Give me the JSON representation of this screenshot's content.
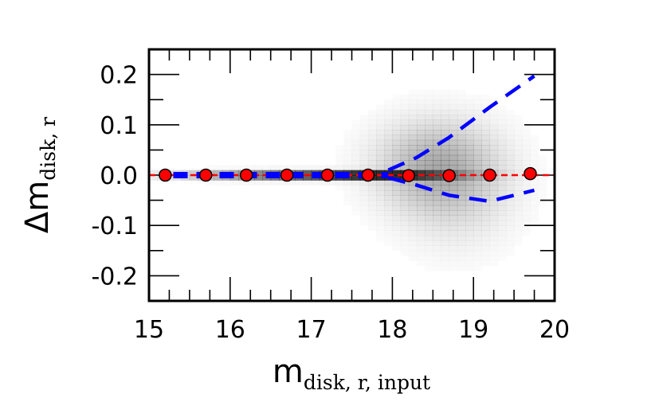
{
  "chart_data": {
    "type": "scatter",
    "xlabel": {
      "main": "m",
      "sub": "disk, r, input"
    },
    "ylabel": {
      "main": "Δm",
      "sub": "disk, r"
    },
    "xlim": [
      15,
      20
    ],
    "ylim": [
      -0.25,
      0.25
    ],
    "x_ticks": [
      15,
      16,
      17,
      18,
      19,
      20
    ],
    "x_tick_labels": [
      "15",
      "16",
      "17",
      "18",
      "19",
      "20"
    ],
    "y_ticks": [
      0.2,
      0.1,
      0.0,
      -0.1,
      -0.2
    ],
    "y_tick_labels": [
      "0.2",
      "0.1",
      "0.0",
      "-0.1",
      "-0.2"
    ],
    "grid": false,
    "colors": {
      "points": "#ff0000",
      "median_line": "#0000ff",
      "zero_line": "#ff0000",
      "density": "#000000"
    },
    "series": [
      {
        "style": "red-circles",
        "x": [
          15.2,
          15.7,
          16.2,
          16.7,
          17.2,
          17.7,
          18.2,
          18.7,
          19.2,
          19.7
        ],
        "y": [
          0.0,
          0.0,
          0.0,
          0.0,
          0.0,
          0.0,
          -0.001,
          -0.001,
          0.0,
          0.003
        ]
      },
      {
        "style": "blue-dashed-median",
        "x": [
          15.3,
          15.7,
          16.2,
          16.7,
          17.2,
          17.7,
          17.95
        ],
        "y": [
          0.0,
          0.0,
          0.0,
          0.0,
          0.0,
          0.0,
          0.0
        ]
      },
      {
        "style": "blue-dashed-upper",
        "x": [
          17.95,
          18.3,
          18.7,
          19.2,
          19.75
        ],
        "y": [
          0.01,
          0.035,
          0.075,
          0.135,
          0.197
        ]
      },
      {
        "style": "blue-dashed-lower",
        "x": [
          17.95,
          18.3,
          18.7,
          19.2,
          19.75
        ],
        "y": [
          -0.005,
          -0.02,
          -0.04,
          -0.052,
          -0.03
        ]
      },
      {
        "style": "red-dashed-zero",
        "x": [
          15.0,
          20.0
        ],
        "y": [
          0.0,
          0.0
        ]
      }
    ],
    "density": {
      "x_range": [
        15,
        20
      ],
      "y_range": [
        -0.25,
        0.25
      ],
      "bins_x": 50,
      "bins_y": 50,
      "clusters": [
        {
          "x": 17.9,
          "y": 0.0,
          "sx": 0.6,
          "sy": 0.004,
          "w": 1.0
        },
        {
          "x": 16.8,
          "y": 0.0,
          "sx": 0.9,
          "sy": 0.006,
          "w": 0.7
        },
        {
          "x": 18.5,
          "y": 0.02,
          "sx": 0.5,
          "sy": 0.06,
          "w": 0.25
        },
        {
          "x": 18.8,
          "y": -0.03,
          "sx": 0.5,
          "sy": 0.08,
          "w": 0.12
        }
      ]
    }
  }
}
